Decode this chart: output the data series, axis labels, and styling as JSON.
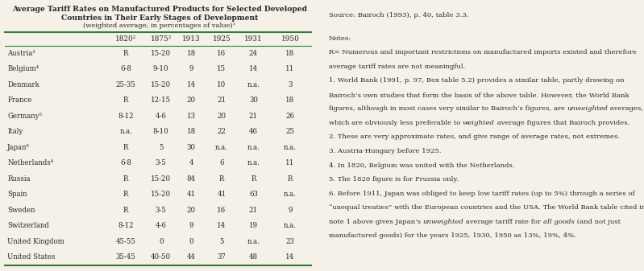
{
  "title_line1": "Average Tariff Rates on Manufactured Products for Selected Developed",
  "title_line2": "Countries in Their Early Stages of Development",
  "subtitle": "(weighted average; in percentages of value)¹",
  "columns": [
    "",
    "1820²",
    "1875²",
    "1913",
    "1925",
    "1931",
    "1950"
  ],
  "rows": [
    [
      "Austria³",
      "R",
      "15-20",
      "18",
      "16",
      "24",
      "18"
    ],
    [
      "Belgium⁴",
      "6-8",
      "9-10",
      "9",
      "15",
      "14",
      "11"
    ],
    [
      "Denmark",
      "25-35",
      "15-20",
      "14",
      "10",
      "n.a.",
      "3"
    ],
    [
      "France",
      "R",
      "12-15",
      "20",
      "21",
      "30",
      "18"
    ],
    [
      "Germany⁵",
      "8-12",
      "4-6",
      "13",
      "20",
      "21",
      "26"
    ],
    [
      "Italy",
      "n.a.",
      "8-10",
      "18",
      "22",
      "46",
      "25"
    ],
    [
      "Japan⁶",
      "R",
      "5",
      "30",
      "n.a.",
      "n.a.",
      "n.a."
    ],
    [
      "Netherlands⁴",
      "6-8",
      "3-5",
      "4",
      "6",
      "n.a.",
      "11"
    ],
    [
      "Russia",
      "R",
      "15-20",
      "84",
      "R",
      "R",
      "R"
    ],
    [
      "Spain",
      "R",
      "15-20",
      "41",
      "41",
      "63",
      "n.a."
    ],
    [
      "Sweden",
      "R",
      "3-5",
      "20",
      "16",
      "21",
      "9"
    ],
    [
      "Switzerland",
      "8-12",
      "4-6",
      "9",
      "14",
      "19",
      "n.a."
    ],
    [
      "United Kingdom",
      "45-55",
      "0",
      "0",
      "5",
      "n.a.",
      "23"
    ],
    [
      "United States",
      "35-45",
      "40-50",
      "44",
      "37",
      "48",
      "14"
    ]
  ],
  "source_text": "Source: Bairoch (1993), p. 40, table 3.3.",
  "notes_lines": [
    {
      "text": "Notes:",
      "bold": true,
      "segments": [
        {
          "t": "Notes:",
          "italic": false
        }
      ]
    },
    {
      "text": "R= Numerous and important restrictions on manufactured imports existed and therefore",
      "bold": false,
      "segments": [
        {
          "t": "R= Numerous and important restrictions on manufactured imports existed and therefore",
          "italic": false
        }
      ]
    },
    {
      "text": "average tariff rates are not meaningful.",
      "bold": false,
      "segments": [
        {
          "t": "average tariff rates are not meaningful.",
          "italic": false
        }
      ]
    },
    {
      "text": "1. World Bank (1991, p. 97, Box table 5.2) provides a similar table, partly drawing on",
      "bold": false,
      "segments": [
        {
          "t": "1. World Bank (1991, p. 97, Box table 5.2) provides a similar table, partly drawing on",
          "italic": false
        }
      ]
    },
    {
      "text": "Bairoch’s own studies that form the basis of the above table. However, the World Bank",
      "bold": false,
      "segments": [
        {
          "t": "Bairoch’s own studies that form the basis of the above table. However, the World Bank",
          "italic": false
        }
      ]
    },
    {
      "text": "figures, although in most cases very similar to Bairoch’s figures, are unweighted averages,",
      "bold": false,
      "segments": [
        {
          "t": "figures, although in most cases very similar to Bairoch’s figures, are ",
          "italic": false
        },
        {
          "t": "unweighted",
          "italic": true
        },
        {
          "t": " averages,",
          "italic": false
        }
      ]
    },
    {
      "text": "which are obviously less preferable to weighted average figures that Bairoch provides.",
      "bold": false,
      "segments": [
        {
          "t": "which are obviously less preferable to ",
          "italic": false
        },
        {
          "t": "weighted",
          "italic": true
        },
        {
          "t": " average figures that Bairoch provides.",
          "italic": false
        }
      ]
    },
    {
      "text": "2. These are very approximate rates, and give range of average rates, not extremes.",
      "bold": false,
      "segments": [
        {
          "t": "2. These are very approximate rates, and give range of average rates, not extremes.",
          "italic": false
        }
      ]
    },
    {
      "text": "3. Austria-Hungary before 1925.",
      "bold": false,
      "segments": [
        {
          "t": "3. Austria-Hungary before 1925.",
          "italic": false
        }
      ]
    },
    {
      "text": "4. In 1820, Belgium was united with the Netherlands.",
      "bold": false,
      "segments": [
        {
          "t": "4. In 1820, Belgium was united with the Netherlands.",
          "italic": false
        }
      ]
    },
    {
      "text": "5. The 1820 figure is for Prussia only.",
      "bold": false,
      "segments": [
        {
          "t": "5. The 1820 figure is for Prussia only.",
          "italic": false
        }
      ]
    },
    {
      "text": "6. Before 1911, Japan was obliged to keep low tariff rates (up to 5%) through a series of",
      "bold": false,
      "segments": [
        {
          "t": "6. Before 1911, Japan was obliged to keep low tariff rates (up to 5%) through a series of",
          "italic": false
        }
      ]
    },
    {
      "text": "“unequal treaties” with the European countries and the USA. The World Bank table cited in",
      "bold": false,
      "segments": [
        {
          "t": "“unequal treaties” with the European countries and the USA. The World Bank table cited in",
          "italic": false
        }
      ]
    },
    {
      "text": "note 1 above gives Japan’s unweighted average tariff rate for all goods (and not just",
      "bold": false,
      "segments": [
        {
          "t": "note 1 above gives Japan’s ",
          "italic": false
        },
        {
          "t": "unweighted",
          "italic": true
        },
        {
          "t": " average tariff rate for ",
          "italic": false
        },
        {
          "t": "all goods",
          "italic": true
        },
        {
          "t": " (and not just",
          "italic": false
        }
      ]
    },
    {
      "text": "manufactured goods) for the years 1925, 1930, 1950 as 13%, 19%, 4%.",
      "bold": false,
      "segments": [
        {
          "t": "manufactured goods) for the years 1925, 1930, 1950 as 13%, 19%, 4%.",
          "italic": false
        }
      ]
    }
  ],
  "bg_color": "#f5f0e8",
  "text_color": "#2a2a2a",
  "line_color": "#2e7d32"
}
